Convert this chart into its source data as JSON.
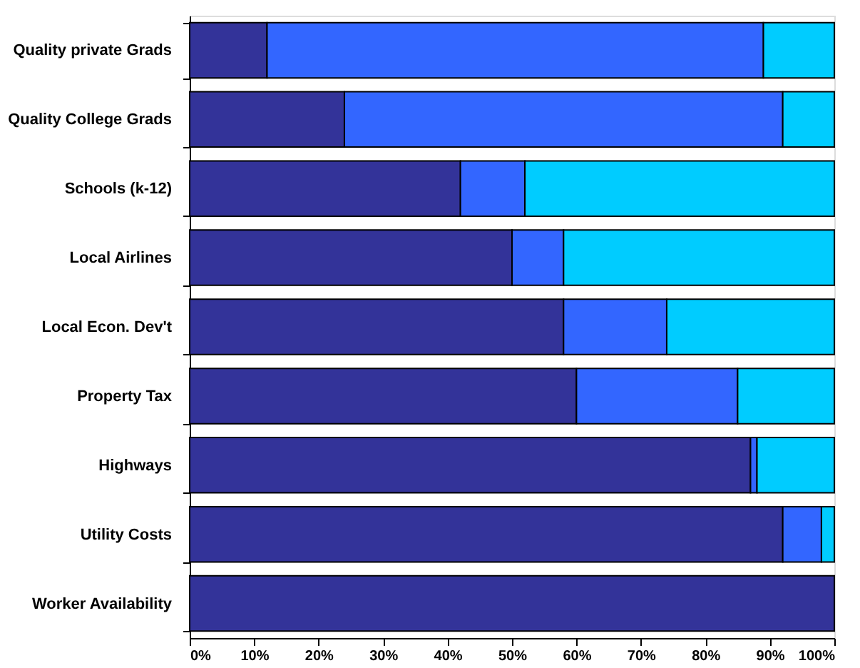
{
  "chart_data": {
    "type": "bar",
    "orientation": "horizontal",
    "stacked": true,
    "categories": [
      "Quality private Grads",
      "Quality College Grads",
      "Schools (k-12)",
      "Local Airlines",
      "Local Econ. Dev't",
      "Property Tax",
      "Highways",
      "Utility Costs",
      "Worker Availability"
    ],
    "series": [
      {
        "color": "#333399",
        "values": [
          12,
          24,
          42,
          50,
          58,
          60,
          87,
          92,
          100
        ]
      },
      {
        "color": "#3366ff",
        "values": [
          77,
          68,
          10,
          8,
          16,
          25,
          1,
          6,
          0
        ]
      },
      {
        "color": "#00ccff",
        "values": [
          11,
          8,
          48,
          42,
          26,
          15,
          12,
          2,
          0
        ]
      }
    ],
    "xlim": [
      0,
      100
    ],
    "xticks": [
      {
        "value": 0,
        "label": "0%"
      },
      {
        "value": 10,
        "label": "10%"
      },
      {
        "value": 20,
        "label": "20%"
      },
      {
        "value": 30,
        "label": "30%"
      },
      {
        "value": 40,
        "label": "40%"
      },
      {
        "value": 50,
        "label": "50%"
      },
      {
        "value": 60,
        "label": "60%"
      },
      {
        "value": 70,
        "label": "70%"
      },
      {
        "value": 80,
        "label": "80%"
      },
      {
        "value": 90,
        "label": "90%"
      },
      {
        "value": 100,
        "label": "100%"
      }
    ],
    "grid": false,
    "legend": false
  }
}
